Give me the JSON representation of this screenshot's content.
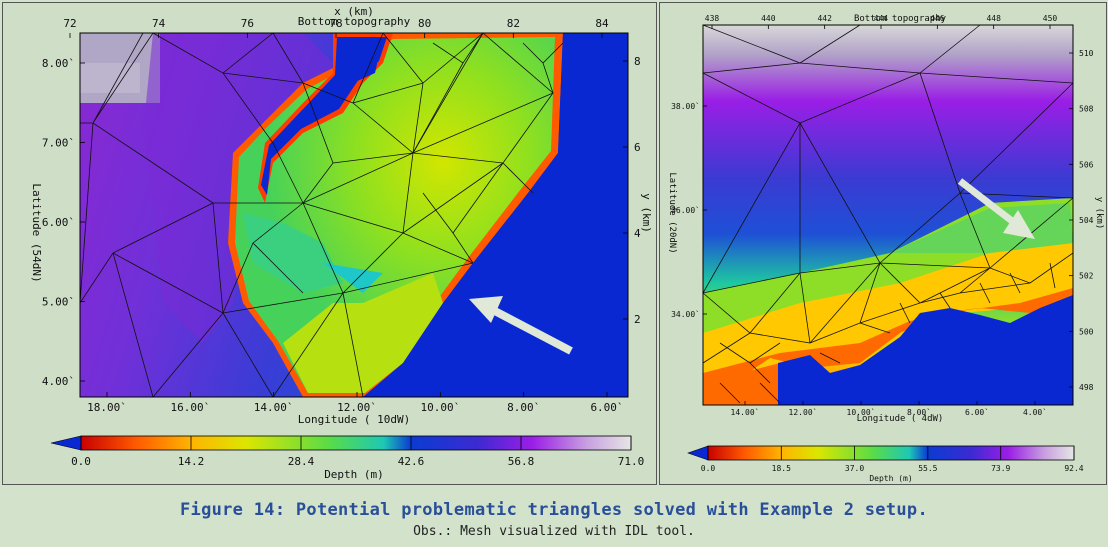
{
  "caption": "Figure 14: Potential problematic triangles solved with Example 2 setup.",
  "obs": "Obs.: Mesh visualized with IDL tool.",
  "chart_data": [
    {
      "type": "heatmap",
      "title": "Bottom topography",
      "top_axis_title": "x (km)",
      "right_axis_title": "y (km)",
      "xlabel": "Longitude ( 10dW)",
      "ylabel": "Latitude (54dN)",
      "top_ticks": [
        "72",
        "74",
        "76",
        "78",
        "80",
        "82",
        "84"
      ],
      "right_ticks": [
        "8",
        "6",
        "4",
        "2"
      ],
      "left_ticks": [
        "8.00`",
        "7.00`",
        "6.00`",
        "5.00`",
        "4.00`"
      ],
      "bottom_ticks": [
        "18.00`",
        "16.00`",
        "14.00`",
        "12.00`",
        "10.00`",
        "8.00`",
        "6.00`"
      ],
      "colorbar": {
        "label": "Depth (m)",
        "ticks": [
          "0.0",
          "14.2",
          "28.4",
          "42.6",
          "56.8",
          "71.0"
        ],
        "min": 0,
        "max": 71.0
      },
      "annotation": "arrow pointing to triangles along coast"
    },
    {
      "type": "heatmap",
      "title": "Bottom topography",
      "right_axis_title": "y (km)",
      "xlabel": "Longitude ( 4dW)",
      "ylabel": "Latitude (20dN)",
      "top_ticks": [
        "438",
        "440",
        "442",
        "444",
        "446",
        "448",
        "450"
      ],
      "right_ticks": [
        "510",
        "508",
        "506",
        "504",
        "502",
        "500",
        "498"
      ],
      "left_ticks": [
        "38.00`",
        "36.00`",
        "34.00`"
      ],
      "bottom_ticks": [
        "14.00`",
        "12.00`",
        "10.00`",
        "8.00`",
        "6.00`",
        "4.00`"
      ],
      "colorbar": {
        "label": "Depth (m)",
        "ticks": [
          "0.0",
          "18.5",
          "37.0",
          "55.5",
          "73.9",
          "92.4"
        ],
        "min": 0,
        "max": 92.4
      },
      "annotation": "arrow pointing to triangles in shallow area"
    }
  ]
}
